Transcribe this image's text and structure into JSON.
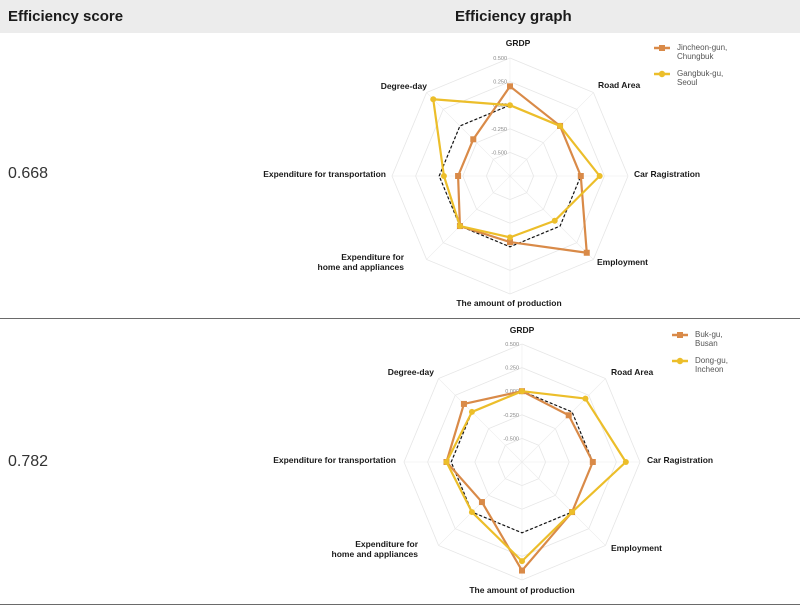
{
  "header": {
    "score_label": "Efficiency score",
    "graph_label": "Efficiency graph"
  },
  "chart_data": [
    {
      "type": "radar",
      "score": "0.668",
      "axes": [
        "GRDP",
        "Road Area",
        "Car Ragistration",
        "Employment",
        "The amount of production",
        "Expenditure for home and appliances",
        "Expenditure for transportation",
        "Degree-day"
      ],
      "ticks": [
        "0.500",
        "0.250",
        "0.000",
        "-0.250",
        "-0.500"
      ],
      "range": [
        -0.75,
        0.5
      ],
      "reference": {
        "values": [
          0,
          0,
          0,
          0,
          0,
          0,
          0,
          0
        ],
        "style": "dashed",
        "color": "#111111"
      },
      "series": [
        {
          "name": "Jincheon-gun, Chungbuk",
          "color": "#d98a48",
          "marker": "square",
          "values": [
            0.2,
            0.0,
            0.0,
            0.4,
            -0.05,
            0.0,
            -0.2,
            -0.2
          ]
        },
        {
          "name": "Gangbuk-gu, Seoul",
          "color": "#ecbe2a",
          "marker": "circle",
          "values": [
            0.0,
            0.0,
            0.2,
            -0.08,
            -0.1,
            0.0,
            -0.05,
            0.4
          ]
        }
      ],
      "legend": "top-right"
    },
    {
      "type": "radar",
      "score": "0.782",
      "axes": [
        "GRDP",
        "Road Area",
        "Car Ragistration",
        "Employment",
        "The amount of production",
        "Expenditure for home and appliances",
        "Expenditure for transportation",
        "Degree-day"
      ],
      "ticks": [
        "0.500",
        "0.250",
        "0.000",
        "-0.250",
        "-0.500"
      ],
      "range": [
        -0.75,
        0.5
      ],
      "reference": {
        "values": [
          0,
          0,
          0,
          0,
          0,
          0,
          0,
          0
        ],
        "style": "dashed",
        "color": "#111111"
      },
      "series": [
        {
          "name": "Buk-gu, Busan",
          "color": "#d98a48",
          "marker": "square",
          "values": [
            0.0,
            -0.05,
            0.0,
            0.0,
            0.4,
            -0.15,
            0.05,
            0.12
          ]
        },
        {
          "name": "Dong-gu, Incheon",
          "color": "#ecbe2a",
          "marker": "circle",
          "values": [
            0.0,
            0.2,
            0.35,
            0.0,
            0.3,
            0.0,
            0.05,
            0.0
          ]
        }
      ],
      "legend": "top-right"
    }
  ]
}
